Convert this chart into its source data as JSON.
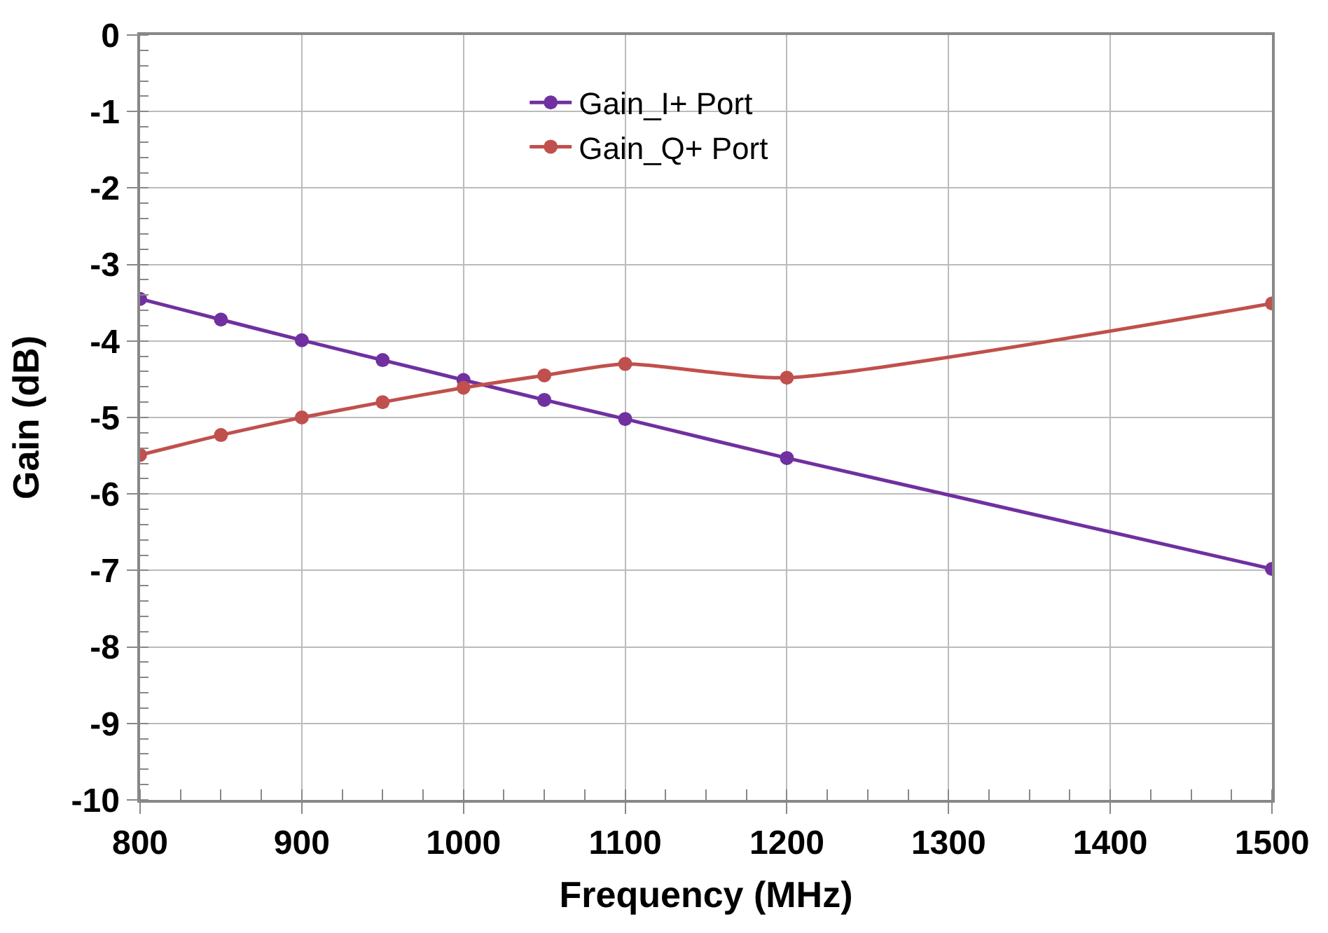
{
  "chart_data": {
    "type": "line",
    "xlabel": "Frequency (MHz)",
    "ylabel": "Gain (dB)",
    "x": [
      800,
      850,
      900,
      950,
      1000,
      1050,
      1100,
      1200,
      1500
    ],
    "series": [
      {
        "name": "Gain_I+ Port",
        "color": "#7030a0",
        "values": [
          -3.45,
          -3.72,
          -3.99,
          -4.25,
          -4.51,
          -4.77,
          -5.02,
          -5.53,
          -6.98
        ]
      },
      {
        "name": "Gain_Q+ Port",
        "color": "#c0504d",
        "values": [
          -5.49,
          -5.23,
          -5.0,
          -4.8,
          -4.61,
          -4.45,
          -4.3,
          -4.48,
          -3.51
        ]
      }
    ],
    "xlim": [
      800,
      1500
    ],
    "xticks": [
      800,
      900,
      1000,
      1100,
      1200,
      1300,
      1400,
      1500
    ],
    "ylim": [
      -10,
      0
    ],
    "yticks": [
      -10,
      -9,
      -8,
      -7,
      -6,
      -5,
      -4,
      -3,
      -2,
      -1,
      0
    ],
    "grid": true,
    "legend": "top",
    "marker": "circle",
    "line_style": "solid"
  }
}
